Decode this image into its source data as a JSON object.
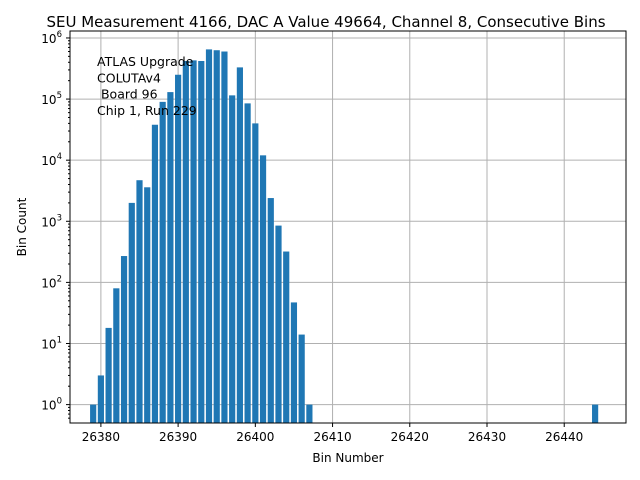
{
  "chart_data": {
    "type": "bar",
    "title": "SEU Measurement 4166, DAC A Value 49664, Channel 8, Consecutive Bins",
    "xlabel": "Bin Number",
    "ylabel": "Bin Count",
    "yscale": "log",
    "grid": true,
    "xlim": [
      26376,
      26448
    ],
    "ylim": [
      0.5,
      1300000
    ],
    "x_ticks": [
      26380,
      26390,
      26400,
      26410,
      26420,
      26430,
      26440
    ],
    "y_ticks": [
      {
        "value": 1,
        "base": "10",
        "exp": "0"
      },
      {
        "value": 10,
        "base": "10",
        "exp": "1"
      },
      {
        "value": 100,
        "base": "10",
        "exp": "2"
      },
      {
        "value": 1000,
        "base": "10",
        "exp": "3"
      },
      {
        "value": 10000,
        "base": "10",
        "exp": "4"
      },
      {
        "value": 100000,
        "base": "10",
        "exp": "5"
      },
      {
        "value": 1000000,
        "base": "10",
        "exp": "6"
      }
    ],
    "annotation": [
      "ATLAS Upgrade",
      "COLUTAv4",
      " Board 96",
      "Chip 1, Run 229"
    ],
    "bar_color": "#1f77b4",
    "x": [
      26379,
      26380,
      26381,
      26382,
      26383,
      26384,
      26385,
      26386,
      26387,
      26388,
      26389,
      26390,
      26391,
      26392,
      26393,
      26394,
      26395,
      26396,
      26397,
      26398,
      26399,
      26400,
      26401,
      26402,
      26403,
      26404,
      26405,
      26406,
      26407,
      26444
    ],
    "values": [
      1,
      3,
      18,
      80,
      270,
      2000,
      4700,
      3600,
      38000,
      90000,
      130000,
      250000,
      420000,
      430000,
      420000,
      650000,
      630000,
      600000,
      115000,
      330000,
      85000,
      40000,
      12000,
      2400,
      850,
      320,
      47,
      14,
      1,
      1
    ]
  }
}
